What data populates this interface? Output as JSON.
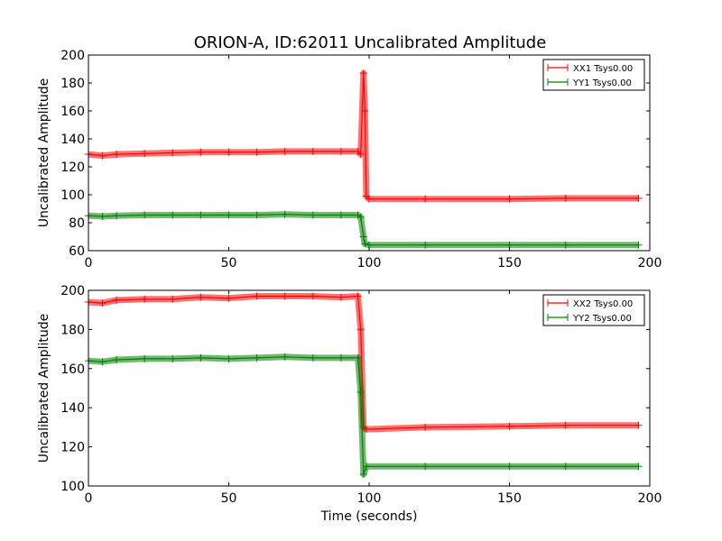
{
  "title": "ORION-A, ID:62011 Uncalibrated Amplitude",
  "chart_data": [
    {
      "type": "line",
      "title": "ORION-A, ID:62011 Uncalibrated Amplitude",
      "xlabel": "",
      "ylabel": "Uncalibrated Amplitude",
      "xlim": [
        0,
        200
      ],
      "ylim": [
        60,
        200
      ],
      "xticks": [
        "0",
        "50",
        "100",
        "150",
        "200"
      ],
      "yticks": [
        "60",
        "80",
        "100",
        "120",
        "140",
        "160",
        "180",
        "200"
      ],
      "grid": false,
      "legend_position": "top-right",
      "series": [
        {
          "name": "XX1 Tsys0.00",
          "color": "#ff0000",
          "points": [
            [
              0,
              129
            ],
            [
              5,
              128
            ],
            [
              10,
              129
            ],
            [
              20,
              129.5
            ],
            [
              30,
              130
            ],
            [
              40,
              130.5
            ],
            [
              50,
              130.5
            ],
            [
              60,
              130.5
            ],
            [
              70,
              131
            ],
            [
              80,
              131
            ],
            [
              90,
              131
            ],
            [
              96,
              131
            ],
            [
              97,
              129
            ],
            [
              98,
              187
            ],
            [
              98.5,
              160
            ],
            [
              99,
              99
            ],
            [
              100,
              97
            ],
            [
              120,
              97
            ],
            [
              150,
              97
            ],
            [
              170,
              97.5
            ],
            [
              196,
              97.5
            ]
          ]
        },
        {
          "name": "YY1 Tsys0.00",
          "color": "#008000",
          "points": [
            [
              0,
              85
            ],
            [
              5,
              84.5
            ],
            [
              10,
              85
            ],
            [
              20,
              85.5
            ],
            [
              30,
              85.5
            ],
            [
              40,
              85.5
            ],
            [
              50,
              85.5
            ],
            [
              60,
              85.5
            ],
            [
              70,
              86
            ],
            [
              80,
              85.5
            ],
            [
              90,
              85.5
            ],
            [
              96,
              85.5
            ],
            [
              97,
              84
            ],
            [
              98,
              70
            ],
            [
              98.5,
              65
            ],
            [
              100,
              64
            ],
            [
              120,
              64
            ],
            [
              150,
              64
            ],
            [
              170,
              64
            ],
            [
              196,
              64
            ]
          ]
        }
      ]
    },
    {
      "type": "line",
      "title": "",
      "xlabel": "Time (seconds)",
      "ylabel": "Uncalibrated Amplitude",
      "xlim": [
        0,
        200
      ],
      "ylim": [
        100,
        200
      ],
      "xticks": [
        "0",
        "50",
        "100",
        "150",
        "200"
      ],
      "yticks": [
        "100",
        "120",
        "140",
        "160",
        "180",
        "200"
      ],
      "grid": false,
      "legend_position": "top-right",
      "series": [
        {
          "name": "XX2 Tsys0.00",
          "color": "#ff0000",
          "points": [
            [
              0,
              194
            ],
            [
              5,
              193.5
            ],
            [
              10,
              195
            ],
            [
              20,
              195.5
            ],
            [
              30,
              195.5
            ],
            [
              40,
              196.5
            ],
            [
              50,
              196
            ],
            [
              60,
              197
            ],
            [
              70,
              197
            ],
            [
              80,
              197
            ],
            [
              90,
              196.5
            ],
            [
              96,
              197
            ],
            [
              97,
              180
            ],
            [
              98,
              130
            ],
            [
              99,
              129
            ],
            [
              120,
              130
            ],
            [
              150,
              130.5
            ],
            [
              170,
              131
            ],
            [
              196,
              131
            ]
          ]
        },
        {
          "name": "YY2 Tsys0.00",
          "color": "#008000",
          "points": [
            [
              0,
              164
            ],
            [
              5,
              163.5
            ],
            [
              10,
              164.5
            ],
            [
              20,
              165
            ],
            [
              30,
              165
            ],
            [
              40,
              165.5
            ],
            [
              50,
              165
            ],
            [
              60,
              165.5
            ],
            [
              70,
              166
            ],
            [
              80,
              165.5
            ],
            [
              90,
              165.5
            ],
            [
              96,
              165.5
            ],
            [
              97,
              148
            ],
            [
              98,
              106
            ],
            [
              99,
              110
            ],
            [
              120,
              110
            ],
            [
              150,
              110
            ],
            [
              170,
              110
            ],
            [
              196,
              110
            ]
          ]
        }
      ]
    }
  ]
}
